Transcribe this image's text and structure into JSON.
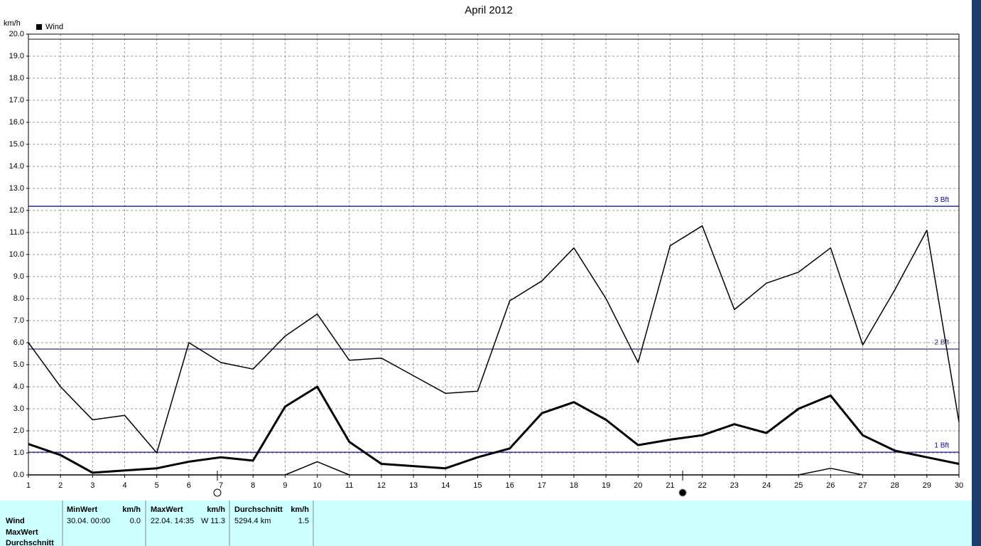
{
  "chart_data": {
    "type": "line",
    "title": "April 2012",
    "y_label": "km/h",
    "legend": {
      "name": "Wind",
      "color": "#000000"
    },
    "x": [
      1,
      2,
      3,
      4,
      5,
      6,
      7,
      8,
      9,
      10,
      11,
      12,
      13,
      14,
      15,
      16,
      17,
      18,
      19,
      20,
      21,
      22,
      23,
      24,
      25,
      26,
      27,
      28,
      29,
      30
    ],
    "xlim": [
      1,
      30
    ],
    "ylim": [
      0,
      20
    ],
    "yticks": [
      {
        "value": 0,
        "label": "0.0"
      },
      {
        "value": 1,
        "label": "1.0"
      },
      {
        "value": 2,
        "label": "2.0"
      },
      {
        "value": 3,
        "label": "3.0"
      },
      {
        "value": 4,
        "label": "4.0"
      },
      {
        "value": 5,
        "label": "5.0"
      },
      {
        "value": 6,
        "label": "6.0"
      },
      {
        "value": 7,
        "label": "7.0"
      },
      {
        "value": 8,
        "label": "8.0"
      },
      {
        "value": 9,
        "label": "9.0"
      },
      {
        "value": 10,
        "label": "10.0"
      },
      {
        "value": 11,
        "label": "11.0"
      },
      {
        "value": 12,
        "label": "12.0"
      },
      {
        "value": 13,
        "label": "13.0"
      },
      {
        "value": 14,
        "label": "14.0"
      },
      {
        "value": 15,
        "label": "15.0"
      },
      {
        "value": 16,
        "label": "16.0"
      },
      {
        "value": 17,
        "label": "17.0"
      },
      {
        "value": 18,
        "label": "18.0"
      },
      {
        "value": 19,
        "label": "19.0"
      },
      {
        "value": 20,
        "label": "20.0"
      }
    ],
    "grid": true,
    "series": [
      {
        "color": "#000000",
        "width": 1.5,
        "values": [
          6.0,
          4.0,
          2.5,
          2.7,
          1.0,
          6.0,
          5.1,
          4.8,
          6.3,
          7.3,
          5.2,
          5.3,
          4.5,
          3.7,
          3.8,
          7.9,
          8.8,
          10.3,
          8.0,
          5.1,
          10.4,
          11.3,
          7.5,
          8.7,
          9.2,
          10.3,
          5.9,
          8.4,
          11.1,
          2.4
        ]
      },
      {
        "color": "#000000",
        "width": 3,
        "values": [
          1.4,
          0.9,
          0.1,
          0.2,
          0.3,
          0.6,
          0.8,
          0.65,
          3.1,
          4.0,
          1.5,
          0.5,
          0.4,
          0.3,
          0.8,
          1.2,
          2.8,
          3.3,
          2.5,
          1.35,
          1.6,
          1.8,
          2.3,
          1.9,
          3.0,
          3.6,
          1.8,
          1.1,
          0.8,
          0.5
        ]
      },
      {
        "color": "#000000",
        "width": 1.5,
        "values": [
          0,
          0,
          0,
          0,
          0,
          0,
          0,
          0,
          0,
          0.6,
          0,
          0,
          0,
          0,
          0,
          0,
          0,
          0,
          0,
          0,
          0,
          0,
          0,
          0,
          0,
          0.3,
          0,
          0,
          0,
          0
        ]
      }
    ],
    "reference_lines": [
      {
        "value": 1.03,
        "label": "1 Bft",
        "color": "#0000a0"
      },
      {
        "value": 5.71,
        "label": "2 Bft",
        "color": "#30307a"
      },
      {
        "value": 12.19,
        "label": "3 Bft",
        "color": "#0000a0"
      },
      {
        "value": 19.77,
        "color": "#404040"
      }
    ]
  },
  "table": {
    "columns": [
      {
        "header": "MinWert",
        "unit": "km/h"
      },
      {
        "header": "MaxWert",
        "unit": "km/h"
      },
      {
        "header": "Durchschnitt",
        "unit": "km/h"
      }
    ],
    "row_labels": [
      "Wind",
      "MaxWert",
      "Durchschnitt"
    ],
    "rows": [
      [
        "30.04. 00:00",
        "0.0",
        "22.04. 14:35",
        "W 11.3",
        "5294.4 km",
        "1.5"
      ]
    ]
  }
}
